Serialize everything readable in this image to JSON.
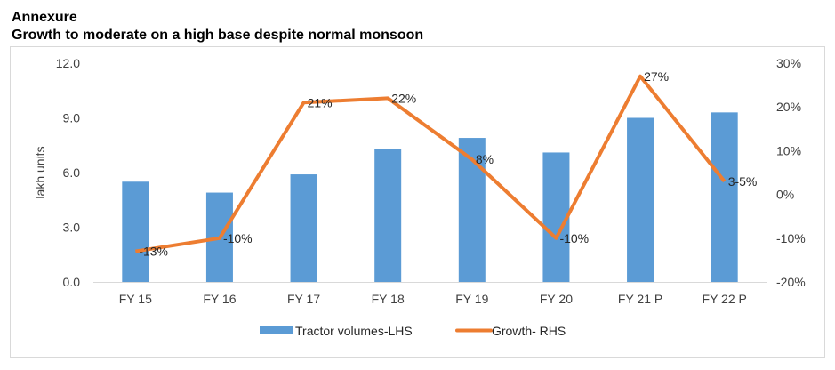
{
  "header": {
    "section": "Annexure",
    "title": "Growth to moderate on a high base despite normal monsoon"
  },
  "chart_data": {
    "type": "bar",
    "title": "Growth to moderate on a high base despite normal monsoon",
    "categories": [
      "FY 15",
      "FY 16",
      "FY 17",
      "FY 18",
      "FY 19",
      "FY 20",
      "FY 21 P",
      "FY 22 P"
    ],
    "series": [
      {
        "name": "Tractor volumes-LHS",
        "type": "bar",
        "axis": "left",
        "color": "#5b9bd5",
        "values": [
          5.5,
          4.9,
          5.9,
          7.3,
          7.9,
          7.1,
          9.0,
          9.3
        ]
      },
      {
        "name": "Growth- RHS",
        "type": "line",
        "axis": "right",
        "color": "#ed7d31",
        "values": [
          -13,
          -10,
          21,
          22,
          8,
          -10,
          27,
          3
        ],
        "labels": [
          "-13%",
          "-10%",
          "21%",
          "22%",
          "8%",
          "-10%",
          "27%",
          "3-5%"
        ]
      }
    ],
    "ylabel": "lakh units",
    "y_left": {
      "range": [
        0,
        12
      ],
      "ticks": [
        "0.0",
        "3.0",
        "6.0",
        "9.0",
        "12.0"
      ],
      "tick_values": [
        0,
        3,
        6,
        9,
        12
      ]
    },
    "y_right": {
      "range": [
        -20,
        30
      ],
      "ticks": [
        "-20%",
        "-10%",
        "0%",
        "10%",
        "20%",
        "30%"
      ],
      "tick_values": [
        -20,
        -10,
        0,
        10,
        20,
        30
      ]
    },
    "grid": false,
    "legend": {
      "position": "bottom",
      "entries": [
        "Tractor volumes-LHS",
        "Growth- RHS"
      ]
    }
  }
}
